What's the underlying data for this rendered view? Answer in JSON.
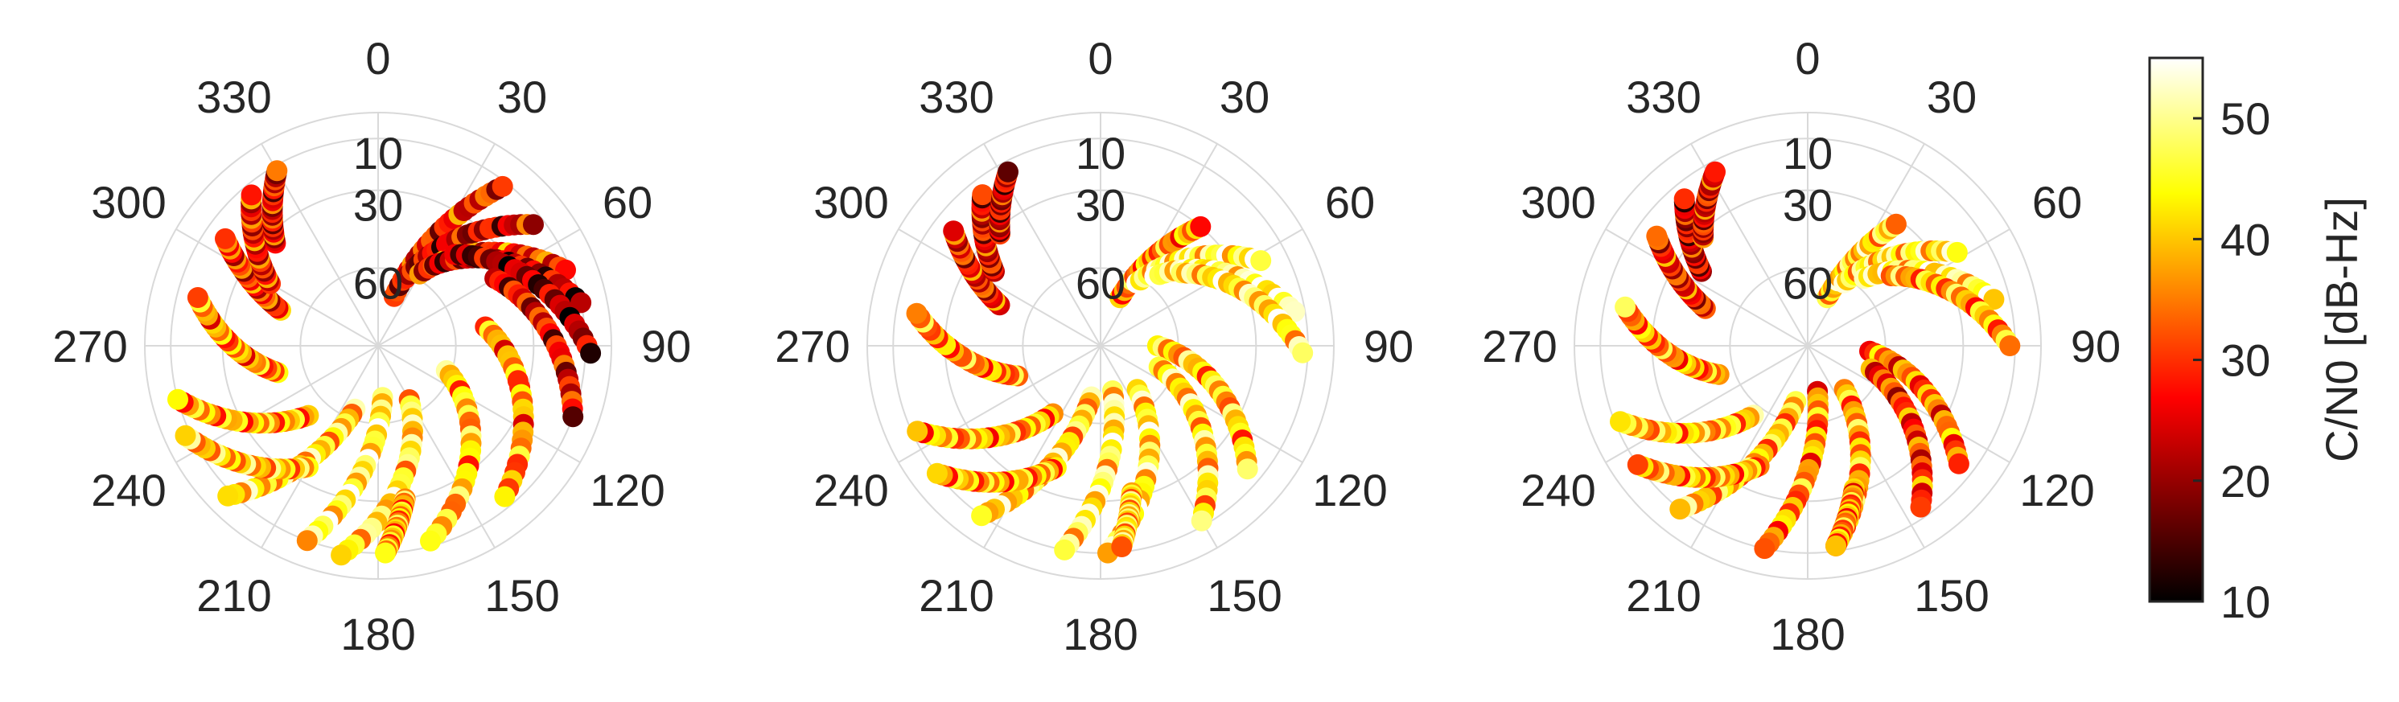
{
  "chart_data": [
    {
      "type": "scatter",
      "projection": "polar",
      "theta_direction": "clockwise",
      "theta_zero": "top",
      "theta_ticks": [
        "0",
        "30",
        "60",
        "90",
        "120",
        "150",
        "180",
        "210",
        "240",
        "270",
        "300",
        "330"
      ],
      "r_ticks": [
        "10",
        "30",
        "60"
      ],
      "grid": true,
      "title": "",
      "tracks": [
        {
          "az": [
            18,
            38
          ],
          "el": [
            70,
            12
          ],
          "cn0": 28
        },
        {
          "az": [
            22,
            52
          ],
          "el": [
            62,
            14
          ],
          "cn0": 24
        },
        {
          "az": [
            30,
            68
          ],
          "el": [
            58,
            12
          ],
          "cn0": 30
        },
        {
          "az": [
            35,
            78
          ],
          "el": [
            52,
            10
          ],
          "cn0": 22
        },
        {
          "az": [
            40,
            92
          ],
          "el": [
            44,
            8
          ],
          "cn0": 20
        },
        {
          "az": [
            60,
            110
          ],
          "el": [
            38,
            10
          ],
          "cn0": 26
        },
        {
          "az": [
            80,
            140
          ],
          "el": [
            48,
            14
          ],
          "cn0": 36
        },
        {
          "az": [
            110,
            165
          ],
          "el": [
            62,
            12
          ],
          "cn0": 40
        },
        {
          "az": [
            150,
            190
          ],
          "el": [
            66,
            8
          ],
          "cn0": 44
        },
        {
          "az": [
            175,
            200
          ],
          "el": [
            70,
            10
          ],
          "cn0": 46
        },
        {
          "az": [
            200,
            225
          ],
          "el": [
            64,
            8
          ],
          "cn0": 42
        },
        {
          "az": [
            225,
            255
          ],
          "el": [
            52,
            10
          ],
          "cn0": 38
        },
        {
          "az": [
            255,
            285
          ],
          "el": [
            50,
            18
          ],
          "cn0": 36
        },
        {
          "az": [
            290,
            305
          ],
          "el": [
            50,
            18
          ],
          "cn0": 30
        },
        {
          "az": [
            300,
            320
          ],
          "el": [
            42,
            14
          ],
          "cn0": 28
        },
        {
          "az": [
            315,
            330
          ],
          "el": [
            34,
            12
          ],
          "cn0": 26
        },
        {
          "az": [
            210,
            245
          ],
          "el": [
            36,
            8
          ],
          "cn0": 40
        },
        {
          "az": [
            170,
            178
          ],
          "el": [
            30,
            10
          ],
          "cn0": 38
        }
      ]
    },
    {
      "type": "scatter",
      "projection": "polar",
      "theta_direction": "clockwise",
      "theta_zero": "top",
      "theta_ticks": [
        "0",
        "30",
        "60",
        "90",
        "120",
        "150",
        "180",
        "210",
        "240",
        "270",
        "300",
        "330"
      ],
      "r_ticks": [
        "10",
        "30",
        "60"
      ],
      "grid": true,
      "title": "",
      "tracks": [
        {
          "az": [
            22,
            40
          ],
          "el": [
            70,
            30
          ],
          "cn0": 36
        },
        {
          "az": [
            30,
            62
          ],
          "el": [
            62,
            20
          ],
          "cn0": 46
        },
        {
          "az": [
            38,
            80
          ],
          "el": [
            56,
            14
          ],
          "cn0": 48
        },
        {
          "az": [
            48,
            92
          ],
          "el": [
            48,
            12
          ],
          "cn0": 44
        },
        {
          "az": [
            90,
            130
          ],
          "el": [
            68,
            16
          ],
          "cn0": 40
        },
        {
          "az": [
            110,
            150
          ],
          "el": [
            66,
            12
          ],
          "cn0": 42
        },
        {
          "az": [
            140,
            178
          ],
          "el": [
            68,
            10
          ],
          "cn0": 44
        },
        {
          "az": [
            165,
            190
          ],
          "el": [
            72,
            10
          ],
          "cn0": 46
        },
        {
          "az": [
            190,
            215
          ],
          "el": [
            70,
            10
          ],
          "cn0": 42
        },
        {
          "az": [
            215,
            245
          ],
          "el": [
            58,
            12
          ],
          "cn0": 38
        },
        {
          "az": [
            250,
            280
          ],
          "el": [
            56,
            18
          ],
          "cn0": 36
        },
        {
          "az": [
            292,
            308
          ],
          "el": [
            48,
            18
          ],
          "cn0": 28
        },
        {
          "az": [
            305,
            322
          ],
          "el": [
            40,
            16
          ],
          "cn0": 26
        },
        {
          "az": [
            318,
            332
          ],
          "el": [
            32,
            14
          ],
          "cn0": 24
        },
        {
          "az": [
            200,
            232
          ],
          "el": [
            40,
            10
          ],
          "cn0": 38
        },
        {
          "az": [
            168,
            174
          ],
          "el": [
            32,
            12
          ],
          "cn0": 42
        }
      ]
    },
    {
      "type": "scatter",
      "projection": "polar",
      "theta_direction": "clockwise",
      "theta_zero": "top",
      "theta_ticks": [
        "0",
        "30",
        "60",
        "90",
        "120",
        "150",
        "180",
        "210",
        "240",
        "270",
        "300",
        "330"
      ],
      "r_ticks": [
        "10",
        "30",
        "60"
      ],
      "grid": true,
      "title": "",
      "tracks": [
        {
          "az": [
            22,
            36
          ],
          "el": [
            70,
            32
          ],
          "cn0": 42
        },
        {
          "az": [
            30,
            58
          ],
          "el": [
            62,
            22
          ],
          "cn0": 44
        },
        {
          "az": [
            40,
            76
          ],
          "el": [
            56,
            16
          ],
          "cn0": 46
        },
        {
          "az": [
            50,
            90
          ],
          "el": [
            48,
            12
          ],
          "cn0": 38
        },
        {
          "az": [
            95,
            128
          ],
          "el": [
            66,
            16
          ],
          "cn0": 34
        },
        {
          "az": [
            110,
            145
          ],
          "el": [
            64,
            14
          ],
          "cn0": 30
        },
        {
          "az": [
            140,
            172
          ],
          "el": [
            68,
            12
          ],
          "cn0": 38
        },
        {
          "az": [
            168,
            192
          ],
          "el": [
            72,
            10
          ],
          "cn0": 36
        },
        {
          "az": [
            192,
            218
          ],
          "el": [
            68,
            10
          ],
          "cn0": 40
        },
        {
          "az": [
            218,
            248
          ],
          "el": [
            56,
            12
          ],
          "cn0": 40
        },
        {
          "az": [
            252,
            282
          ],
          "el": [
            54,
            18
          ],
          "cn0": 36
        },
        {
          "az": [
            290,
            306
          ],
          "el": [
            48,
            18
          ],
          "cn0": 28
        },
        {
          "az": [
            305,
            320
          ],
          "el": [
            40,
            16
          ],
          "cn0": 24
        },
        {
          "az": [
            316,
            332
          ],
          "el": [
            32,
            14
          ],
          "cn0": 26
        },
        {
          "az": [
            202,
            235
          ],
          "el": [
            40,
            10
          ],
          "cn0": 38
        },
        {
          "az": [
            162,
            172
          ],
          "el": [
            32,
            12
          ],
          "cn0": 36
        }
      ]
    }
  ],
  "colorbar": {
    "label": "C/N0 [dB-Hz]",
    "range": [
      10,
      55
    ],
    "ticks": [
      "10",
      "20",
      "30",
      "40",
      "50"
    ],
    "colormap": "hot"
  }
}
